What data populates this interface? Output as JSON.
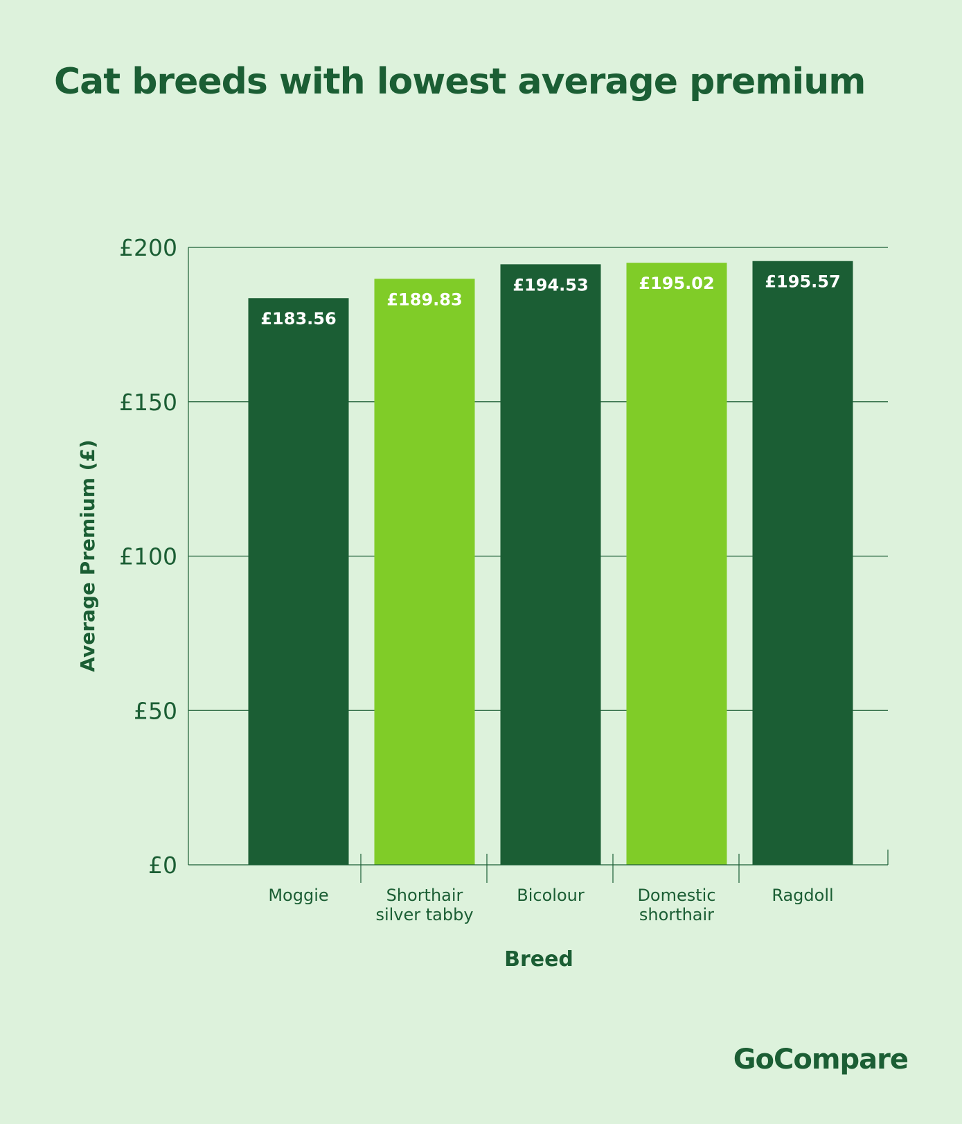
{
  "title": "Cat breeds with lowest average premium",
  "brand": "GoCompare",
  "colors": {
    "background": "#ddf2dc",
    "dark_green": "#1b5e34",
    "light_green": "#80cc28",
    "text": "#1b5e34",
    "grid": "#1b5e34",
    "bar_label": "#ffffff"
  },
  "chart_data": {
    "type": "bar",
    "title": "Cat breeds with lowest average premium",
    "xlabel": "Breed",
    "ylabel": "Average Premium (£)",
    "categories": [
      "Moggie",
      "Shorthair silver tabby",
      "Bicolour",
      "Domestic shorthair",
      "Ragdoll"
    ],
    "category_lines": [
      [
        "Moggie"
      ],
      [
        "Shorthair",
        "silver tabby"
      ],
      [
        "Bicolour"
      ],
      [
        "Domestic",
        "shorthair"
      ],
      [
        "Ragdoll"
      ]
    ],
    "values": [
      183.56,
      189.83,
      194.53,
      195.02,
      195.57
    ],
    "value_labels": [
      "£183.56",
      "£189.83",
      "£194.53",
      "£195.02",
      "£195.57"
    ],
    "bar_colors": [
      "#1b5e34",
      "#80cc28",
      "#1b5e34",
      "#80cc28",
      "#1b5e34"
    ],
    "ylim": [
      0,
      200
    ],
    "yticks": [
      0,
      50,
      100,
      150,
      200
    ],
    "ytick_labels": [
      "£0",
      "£50",
      "£100",
      "£150",
      "£200"
    ],
    "grid": true,
    "legend": "none"
  }
}
